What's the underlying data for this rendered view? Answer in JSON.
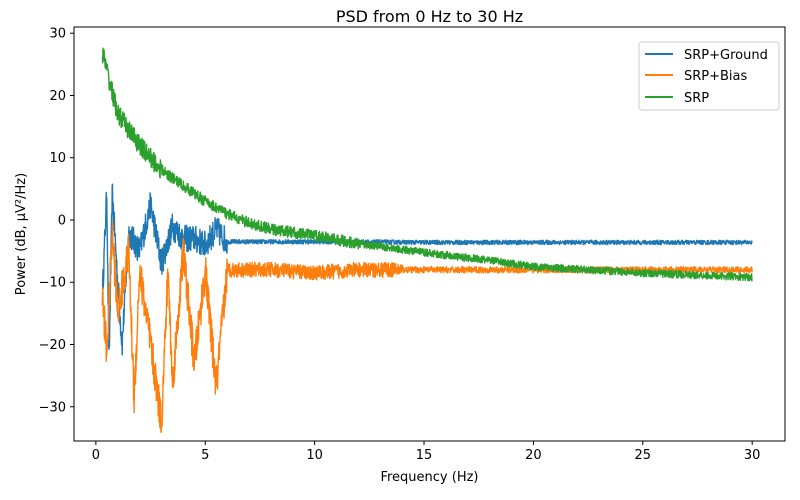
{
  "chart_data": {
    "type": "line",
    "title": "PSD from 0 Hz to 30 Hz",
    "xlabel": "Frequency (Hz)",
    "ylabel": "Power (dB, µV²/Hz)",
    "xlim": [
      -1.0,
      31.5
    ],
    "ylim": [
      -35.5,
      31.0
    ],
    "x_ticks": [
      0,
      5,
      10,
      15,
      20,
      25,
      30
    ],
    "y_ticks": [
      -30,
      -20,
      -10,
      0,
      10,
      20,
      30
    ],
    "x_tick_labels": [
      "0",
      "5",
      "10",
      "15",
      "20",
      "25",
      "30"
    ],
    "y_tick_labels": [
      "−30",
      "−20",
      "−10",
      "0",
      "10",
      "20",
      "30"
    ],
    "legend_position": "top-right",
    "grid": false,
    "x_range": [
      0.3,
      30.0
    ],
    "series": [
      {
        "name": "SRP+Ground",
        "color": "#1f77b4",
        "points": [
          [
            0.3,
            -12
          ],
          [
            0.5,
            4.5
          ],
          [
            0.6,
            -23.5
          ],
          [
            0.75,
            4.5
          ],
          [
            1.0,
            -10
          ],
          [
            1.2,
            -20
          ],
          [
            1.5,
            -2
          ],
          [
            2.0,
            -5
          ],
          [
            2.5,
            2.5
          ],
          [
            3.0,
            -7
          ],
          [
            3.5,
            -1
          ],
          [
            4.0,
            -3
          ],
          [
            4.5,
            -3
          ],
          [
            5.0,
            -4
          ],
          [
            5.5,
            -1.5
          ],
          [
            6.0,
            -3.5
          ],
          [
            7.0,
            -3.5
          ],
          [
            8.0,
            -3.5
          ],
          [
            10.0,
            -3.5
          ],
          [
            12.0,
            -3.5
          ],
          [
            15.0,
            -3.6
          ],
          [
            20.0,
            -3.6
          ],
          [
            25.0,
            -3.6
          ],
          [
            30.0,
            -3.6
          ]
        ]
      },
      {
        "name": "SRP+Bias",
        "color": "#ff7f0e",
        "points": [
          [
            0.3,
            -12
          ],
          [
            0.5,
            -21.5
          ],
          [
            0.75,
            -2
          ],
          [
            1.0,
            -15
          ],
          [
            1.5,
            -5
          ],
          [
            1.75,
            -29
          ],
          [
            2.0,
            -8
          ],
          [
            2.5,
            -20
          ],
          [
            3.0,
            -32.5
          ],
          [
            3.3,
            -8
          ],
          [
            3.5,
            -26.5
          ],
          [
            4.0,
            -5
          ],
          [
            4.5,
            -23
          ],
          [
            5.0,
            -8
          ],
          [
            5.5,
            -27
          ],
          [
            6.0,
            -8
          ],
          [
            7.0,
            -8
          ],
          [
            8.0,
            -8
          ],
          [
            10.0,
            -8.5
          ],
          [
            12.0,
            -8
          ],
          [
            15.0,
            -8
          ],
          [
            18.0,
            -8
          ],
          [
            20.0,
            -8
          ],
          [
            25.0,
            -8
          ],
          [
            30.0,
            -8
          ]
        ]
      },
      {
        "name": "SRP",
        "color": "#2ca02c",
        "points": [
          [
            0.3,
            27
          ],
          [
            0.5,
            24
          ],
          [
            1.0,
            17
          ],
          [
            2.0,
            12
          ],
          [
            3.0,
            8
          ],
          [
            4.0,
            5.5
          ],
          [
            5.0,
            3
          ],
          [
            6.0,
            1
          ],
          [
            7.0,
            -0.5
          ],
          [
            8.0,
            -1.5
          ],
          [
            10.0,
            -2.5
          ],
          [
            12.0,
            -3.8
          ],
          [
            15.0,
            -5.2
          ],
          [
            18.0,
            -6.5
          ],
          [
            20.0,
            -7.5
          ],
          [
            25.0,
            -8.5
          ],
          [
            30.0,
            -9.2
          ]
        ]
      }
    ]
  }
}
